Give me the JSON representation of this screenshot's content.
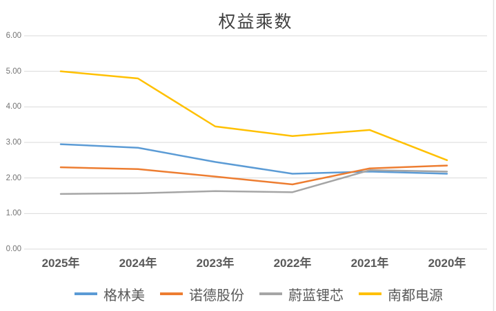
{
  "chart_data": {
    "type": "line",
    "title": "权益乘数",
    "xlabel": "",
    "ylabel": "",
    "categories": [
      "2025年",
      "2024年",
      "2023年",
      "2022年",
      "2021年",
      "2020年"
    ],
    "series": [
      {
        "name": "格林美",
        "color": "#5B9BD5",
        "values": [
          2.95,
          2.85,
          2.45,
          2.12,
          2.18,
          2.12
        ]
      },
      {
        "name": "诺德股份",
        "color": "#ED7D31",
        "values": [
          2.3,
          2.25,
          2.04,
          1.82,
          2.27,
          2.35
        ]
      },
      {
        "name": "蔚蓝锂芯",
        "color": "#A5A5A5",
        "values": [
          1.55,
          1.57,
          1.63,
          1.6,
          2.22,
          2.18
        ]
      },
      {
        "name": "南都电源",
        "color": "#FFC000",
        "values": [
          5.0,
          4.8,
          3.45,
          3.18,
          3.35,
          2.5
        ]
      }
    ],
    "ylim": [
      0,
      6
    ],
    "yticks": [
      0,
      1,
      2,
      3,
      4,
      5,
      6
    ],
    "ytick_labels": [
      "0.00",
      "1.00",
      "2.00",
      "3.00",
      "4.00",
      "5.00",
      "6.00"
    ],
    "grid": true,
    "legend_position": "bottom",
    "colors": {
      "gridline": "#D9D9D9",
      "right_border": "#E2E2E2",
      "axis_text": "#595959",
      "ytick_text": "#737373",
      "title_text": "#404040"
    }
  }
}
